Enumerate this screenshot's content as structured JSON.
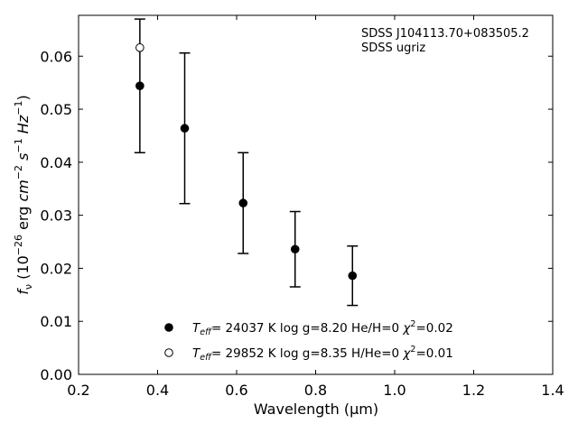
{
  "chart_data": {
    "type": "scatter",
    "xlabel": "Wavelength (μm)",
    "ylabel": "f_ν (10^-26 erg cm^-2 s^-1 Hz^-1)",
    "xlim": [
      0.2,
      1.4
    ],
    "ylim": [
      0.0,
      0.0677
    ],
    "xticks": [
      "0.2",
      "0.4",
      "0.6",
      "0.8",
      "1.0",
      "1.2",
      "1.4"
    ],
    "yticks": [
      "0.00",
      "0.01",
      "0.02",
      "0.03",
      "0.04",
      "0.05",
      "0.06"
    ],
    "grid": false,
    "legend_placement": "bottom-center",
    "annotations": [
      "SDSS J104113.70+083505.2",
      "SDSS ugriz"
    ],
    "series": [
      {
        "marker": "filled-circle",
        "color": "#000000",
        "legend": {
          "teff_label": "T",
          "teff_sub": "eff",
          "rest": "= 24037 K  log g=8.20  He/H=0  ",
          "chi": "χ",
          "chi_sup": "2",
          "chi_val": "=0.02"
        },
        "points": [
          {
            "x": 0.3551,
            "y": 0.0544,
            "err": 0.0126
          },
          {
            "x": 0.4686,
            "y": 0.0464,
            "err": 0.0142
          },
          {
            "x": 0.6166,
            "y": 0.0323,
            "err": 0.0095
          },
          {
            "x": 0.748,
            "y": 0.0236,
            "err": 0.0071
          },
          {
            "x": 0.8932,
            "y": 0.0186,
            "err": 0.0056
          }
        ]
      },
      {
        "marker": "open-circle",
        "color": "#000000",
        "legend": {
          "teff_label": "T",
          "teff_sub": "eff",
          "rest": "= 29852 K  log g=8.35  H/He=0  ",
          "chi": "χ",
          "chi_sup": "2",
          "chi_val": "=0.01"
        },
        "points": [
          {
            "x": 0.3551,
            "y": 0.0616
          }
        ]
      }
    ]
  }
}
